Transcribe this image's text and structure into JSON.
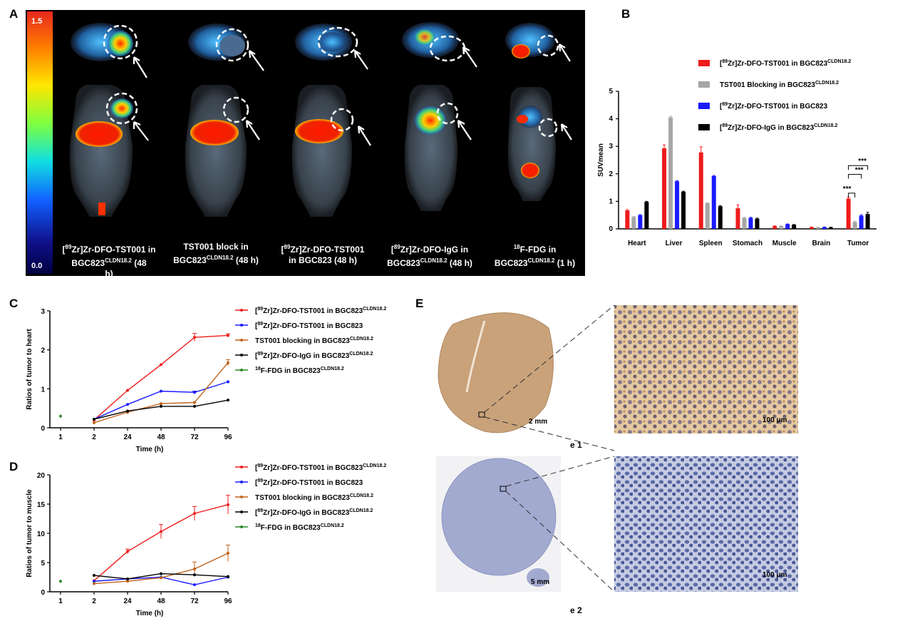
{
  "panel_labels": {
    "a": "A",
    "b": "B",
    "c": "C",
    "d": "D",
    "e": "E"
  },
  "panelA": {
    "colorbar_max": "1.5",
    "colorbar_min": "0.0",
    "captions": [
      {
        "pre": "[",
        "sup1": "89",
        "mid": "Zr]Zr-DFO-TST001 in",
        "line2": "BGC823",
        "sup2": "CLDN18.2",
        "tail": "  (48",
        "line3": "h)"
      },
      {
        "line1": "TST001 block in",
        "line2": "BGC823",
        "sup2": "CLDN18.2",
        "tail": "  (48 h)"
      },
      {
        "pre": "[",
        "sup1": "89",
        "mid": "Zr]Zr-DFO-TST001",
        "line2": " in  BGC823  (48 h)"
      },
      {
        "pre": "[",
        "sup1": "89",
        "mid": "Zr]Zr-DFO-IgG in",
        "line2": "BGC823",
        "sup2": "CLDN18.2",
        "tail": "  (48 h)"
      },
      {
        "sup1": "18",
        "mid": "F-FDG in",
        "line2": "BGC823",
        "sup2": "CLDN18.2",
        "tail": "  (1 h)"
      }
    ]
  },
  "legend_b": [
    {
      "pre": "[",
      "sup1": "89",
      "mid": "Zr]Zr-DFO-TST001 in BGC823",
      "sup2": "CLDN18.2",
      "color": "#ee1c1c"
    },
    {
      "pre": "",
      "sup1": "",
      "mid": "TST001 Blocking in BGC823",
      "sup2": "CLDN18.2",
      "color": "#a6a6a6"
    },
    {
      "pre": "[",
      "sup1": "89",
      "mid": "Zr]Zr-DFO-TST001 in BGC823",
      "sup2": "",
      "color": "#1a1aff"
    },
    {
      "pre": "[",
      "sup1": "89",
      "mid": "Zr]Zr-DFO-IgG in BGC823",
      "sup2": "CLDN18.2",
      "color": "#000000"
    }
  ],
  "legend_cd": [
    {
      "pre": "[",
      "sup1": "89",
      "mid": "Zr]Zr-DFO-TST001 in BGC823",
      "sup2": "CLDN18.2",
      "color": "#ee1c1c"
    },
    {
      "pre": "[",
      "sup1": "89",
      "mid": "Zr]Zr-DFO-TST001 in BGC823",
      "sup2": "",
      "color": "#1a1aff"
    },
    {
      "pre": "",
      "sup1": "",
      "mid": "TST001 blocking in BGC823",
      "sup2": "CLDN18.2",
      "color": "#c0621a"
    },
    {
      "pre": "[",
      "sup1": "89",
      "mid": "Zr]Zr-DFO-IgG in BGC823",
      "sup2": "CLDN18.2",
      "color": "#000000"
    },
    {
      "pre": "",
      "sup1": "18",
      "mid": "F-FDG in BGC823",
      "sup2": "CLDN18.2",
      "color": "#2a8a2a"
    }
  ],
  "chart_data": [
    {
      "id": "B",
      "type": "bar",
      "ylabel": "SUVmean",
      "ylim": [
        0,
        5
      ],
      "yticks": [
        "0",
        "1",
        "2",
        "3",
        "4",
        "5"
      ],
      "categories": [
        "Heart",
        "Liver",
        "Spleen",
        "Stomach",
        "Muscle",
        "Brain",
        "Tumor"
      ],
      "series": [
        {
          "color": "#ee1c1c",
          "values": [
            0.67,
            2.93,
            2.78,
            0.75,
            0.1,
            0.06,
            1.1
          ],
          "errors": [
            0.03,
            0.12,
            0.2,
            0.12,
            0.01,
            0.01,
            0.05
          ]
        },
        {
          "color": "#a6a6a6",
          "values": [
            0.43,
            4.05,
            0.93,
            0.4,
            0.1,
            0.05,
            0.25
          ],
          "errors": [
            0.02,
            0.04,
            0.02,
            0.02,
            0.01,
            0.01,
            0.02
          ]
        },
        {
          "color": "#1a1aff",
          "values": [
            0.5,
            1.73,
            1.92,
            0.4,
            0.17,
            0.06,
            0.48
          ],
          "errors": [
            0.02,
            0.02,
            0.02,
            0.02,
            0.01,
            0.01,
            0.03
          ]
        },
        {
          "color": "#000000",
          "values": [
            0.98,
            1.35,
            0.82,
            0.37,
            0.15,
            0.05,
            0.54
          ],
          "errors": [
            0.02,
            0.02,
            0.02,
            0.02,
            0.01,
            0.01,
            0.06
          ]
        }
      ],
      "significance": [
        "***",
        "***",
        "***"
      ]
    },
    {
      "id": "C",
      "type": "line",
      "ylabel": "Ratios of tumor to heart",
      "xlabel": "Time (h)",
      "x": [
        "1",
        "2",
        "24",
        "48",
        "72",
        "96"
      ],
      "ylim": [
        0,
        3
      ],
      "yticks": [
        "0",
        "1",
        "2",
        "3"
      ],
      "series": [
        {
          "color": "#ee1c1c",
          "values": [
            null,
            0.2,
            0.96,
            1.62,
            2.32,
            2.37
          ],
          "errors": [
            0,
            0,
            0,
            0,
            0.1,
            0.04
          ]
        },
        {
          "color": "#1a1aff",
          "values": [
            null,
            0.22,
            0.6,
            0.94,
            0.91,
            1.18
          ],
          "errors": [
            0,
            0,
            0,
            0,
            0.03,
            0
          ]
        },
        {
          "color": "#c0621a",
          "values": [
            null,
            0.13,
            0.4,
            0.62,
            0.65,
            1.67
          ],
          "errors": [
            0,
            0,
            0,
            0,
            0,
            0.08
          ]
        },
        {
          "color": "#000000",
          "values": [
            null,
            0.22,
            0.43,
            0.55,
            0.55,
            0.71
          ],
          "errors": [
            0,
            0,
            0,
            0,
            0,
            0
          ]
        },
        {
          "color": "#2a8a2a",
          "values": [
            0.3,
            null,
            null,
            null,
            null,
            null
          ],
          "errors": [
            0,
            0,
            0,
            0,
            0,
            0
          ]
        }
      ]
    },
    {
      "id": "D",
      "type": "line",
      "ylabel": "Ratios of tumor to muscle",
      "xlabel": "Time (h)",
      "x": [
        "1",
        "2",
        "24",
        "48",
        "72",
        "96"
      ],
      "ylim": [
        0,
        20
      ],
      "yticks": [
        "0",
        "5",
        "10",
        "15",
        "20"
      ],
      "series": [
        {
          "color": "#ee1c1c",
          "values": [
            null,
            1.9,
            6.9,
            10.3,
            13.4,
            14.9
          ],
          "errors": [
            0,
            0,
            0.4,
            1.2,
            1.2,
            1.6
          ]
        },
        {
          "color": "#1a1aff",
          "values": [
            null,
            1.8,
            2.2,
            2.5,
            1.2,
            2.5
          ],
          "errors": [
            0,
            0,
            0,
            0,
            0,
            0
          ]
        },
        {
          "color": "#c0621a",
          "values": [
            null,
            1.4,
            1.8,
            2.4,
            3.9,
            6.6
          ],
          "errors": [
            0,
            0,
            0,
            0,
            1.2,
            1.4
          ]
        },
        {
          "color": "#000000",
          "values": [
            null,
            2.8,
            2.2,
            3.1,
            2.9,
            2.6
          ],
          "errors": [
            0,
            0,
            0,
            0,
            0,
            0
          ]
        },
        {
          "color": "#2a8a2a",
          "values": [
            1.8,
            null,
            null,
            null,
            null,
            null
          ],
          "errors": [
            0,
            0,
            0,
            0,
            0,
            0
          ]
        }
      ]
    }
  ],
  "panelE": {
    "scale_top_overview": "2 mm",
    "scale_top_zoom": "100 μm",
    "scale_bottom_overview": "5 mm",
    "scale_bottom_zoom": "100 μm",
    "label_e1": "e 1",
    "label_e2": "e 2"
  }
}
